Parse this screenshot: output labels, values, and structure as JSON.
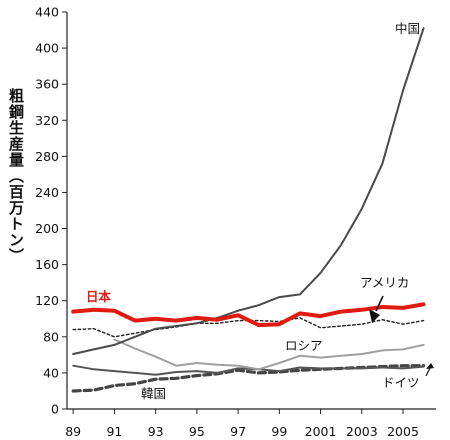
{
  "chart_data": {
    "type": "line",
    "title": "",
    "xlabel": "",
    "ylabel": "粗鋼生産量（百万トン）",
    "ylim": [
      0,
      440
    ],
    "xlim": [
      1988.7,
      2006.6
    ],
    "yticks": [
      0,
      40,
      80,
      120,
      160,
      200,
      240,
      280,
      320,
      360,
      400,
      440
    ],
    "xticks": [
      {
        "x": 1989,
        "label": "89"
      },
      {
        "x": 1991,
        "label": "91"
      },
      {
        "x": 1993,
        "label": "93"
      },
      {
        "x": 1995,
        "label": "95"
      },
      {
        "x": 1997,
        "label": "97"
      },
      {
        "x": 1999,
        "label": "99"
      },
      {
        "x": 2001,
        "label": "2001"
      },
      {
        "x": 2003,
        "label": "2003"
      },
      {
        "x": 2005,
        "label": "2005"
      }
    ],
    "x": [
      1989,
      1990,
      1991,
      1992,
      1993,
      1994,
      1995,
      1996,
      1997,
      1998,
      1999,
      2000,
      2001,
      2002,
      2003,
      2004,
      2005,
      2006
    ],
    "series": [
      {
        "name": "中国",
        "color": "#4a4a4a",
        "style": "solid",
        "values": [
          61,
          66,
          71,
          80,
          89,
          92,
          95,
          101,
          109,
          115,
          124,
          127,
          151,
          182,
          222,
          272,
          353,
          422
        ]
      },
      {
        "name": "日本",
        "color": "#e01b12",
        "style": "solid-thick",
        "values": [
          108,
          110,
          109,
          98,
          100,
          98,
          101,
          99,
          104,
          93,
          94,
          106,
          103,
          108,
          110,
          113,
          112,
          116
        ]
      },
      {
        "name": "アメリカ",
        "color": "#222222",
        "style": "dotted",
        "values": [
          88,
          89,
          80,
          84,
          88,
          91,
          95,
          95,
          98,
          98,
          97,
          101,
          90,
          92,
          94,
          99,
          94,
          98
        ]
      },
      {
        "name": "ロシア",
        "color": "#a0a0a0",
        "style": "solid",
        "values": [
          null,
          null,
          77,
          67,
          58,
          48,
          51,
          49,
          48,
          44,
          51,
          59,
          57,
          59,
          61,
          65,
          66,
          71
        ]
      },
      {
        "name": "ドイツ",
        "color": "#555555",
        "style": "solid",
        "values": [
          48,
          44,
          42,
          40,
          38,
          41,
          42,
          40,
          45,
          44,
          42,
          46,
          45,
          45,
          45,
          46,
          45,
          47
        ]
      },
      {
        "name": "韓国",
        "color": "#444444",
        "style": "dashed-thick",
        "values": [
          20,
          21,
          26,
          28,
          33,
          34,
          37,
          39,
          43,
          40,
          41,
          43,
          44,
          45,
          46,
          47,
          48,
          48
        ]
      }
    ]
  }
}
